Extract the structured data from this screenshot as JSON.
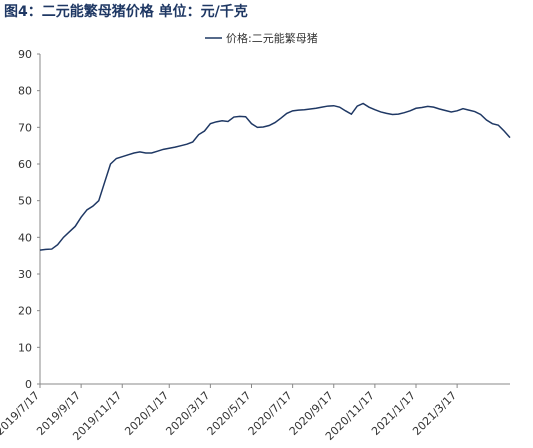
{
  "chart_data": {
    "type": "line",
    "title": "图4：二元能繁母猪价格 单位：元/千克",
    "categories": [
      "2019/7/17",
      null,
      null,
      null,
      null,
      null,
      null,
      "2019/9/17",
      null,
      null,
      null,
      null,
      null,
      null,
      "2019/11/17",
      null,
      null,
      null,
      null,
      null,
      null,
      null,
      "2020/1/17",
      null,
      null,
      null,
      null,
      null,
      null,
      "2020/3/17",
      null,
      null,
      null,
      null,
      null,
      null,
      "2020/5/17",
      null,
      null,
      null,
      null,
      null,
      null,
      "2020/7/17",
      null,
      null,
      null,
      null,
      null,
      null,
      "2020/9/17",
      null,
      null,
      null,
      null,
      null,
      null,
      "2020/11/17",
      null,
      null,
      null,
      null,
      null,
      null,
      "2021/1/17",
      null,
      null,
      null,
      null,
      null,
      null,
      "2021/3/17",
      null,
      null,
      null,
      null,
      null,
      null,
      null,
      null,
      null
    ],
    "series": [
      {
        "name": "价格:二元能繁母猪",
        "color": "#1f3864",
        "values": [
          36.5,
          36.7,
          36.8,
          38,
          40,
          41.5,
          43,
          45.5,
          47.5,
          48.5,
          50,
          55,
          60,
          61.5,
          62,
          62.5,
          63,
          63.3,
          63,
          63,
          63.5,
          64,
          64.3,
          64.6,
          65,
          65.4,
          66,
          68,
          69,
          71,
          71.5,
          71.8,
          71.6,
          72.8,
          73,
          72.9,
          71,
          70,
          70.1,
          70.5,
          71.3,
          72.5,
          73.8,
          74.5,
          74.7,
          74.8,
          75,
          75.2,
          75.5,
          75.8,
          75.9,
          75.5,
          74.5,
          73.6,
          75.8,
          76.5,
          75.5,
          74.8,
          74.2,
          73.8,
          73.5,
          73.6,
          74,
          74.5,
          75.2,
          75.4,
          75.7,
          75.5,
          75,
          74.6,
          74.2,
          74.5,
          75.1,
          74.7,
          74.3,
          73.5,
          72,
          71,
          70.6,
          69,
          67.2
        ]
      }
    ],
    "ylim": [
      0,
      90
    ],
    "yticks": [
      0,
      10,
      20,
      30,
      40,
      50,
      60,
      70,
      80,
      90
    ]
  }
}
